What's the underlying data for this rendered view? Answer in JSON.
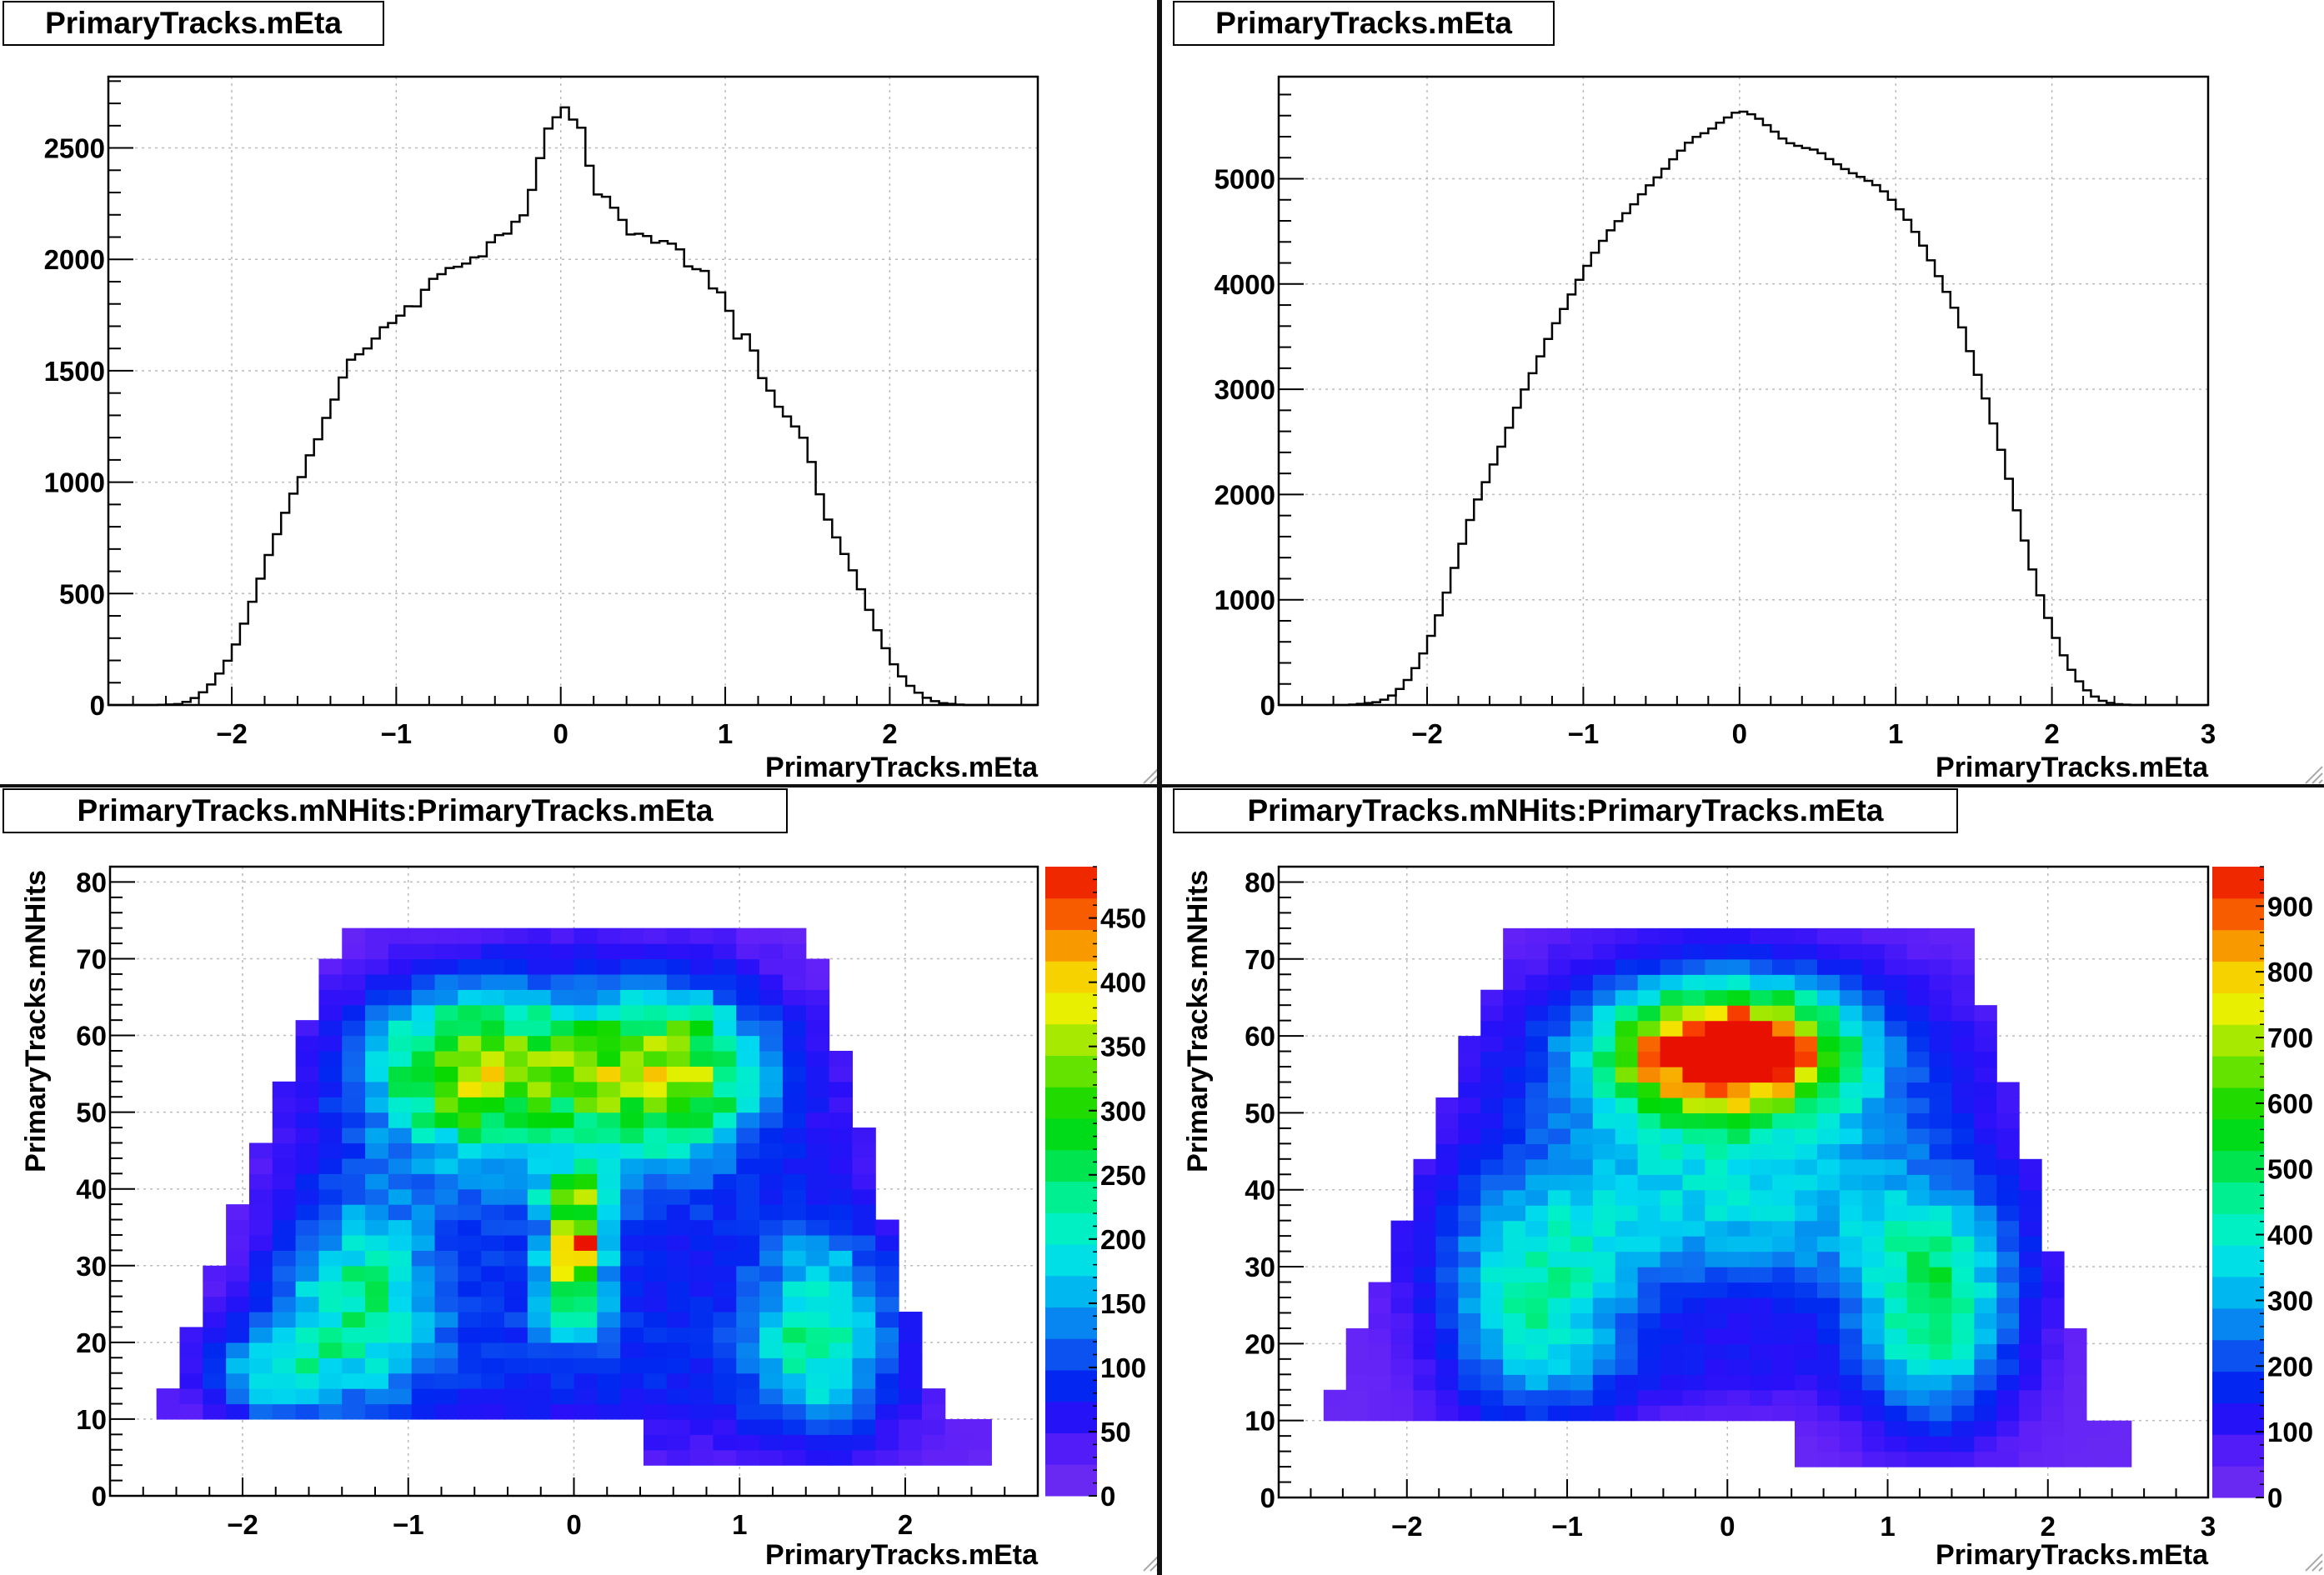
{
  "pads": [
    {
      "title": "PrimaryTracks.mEta",
      "chart_data": {
        "type": "histogram",
        "title": "PrimaryTracks.mEta",
        "xlabel": "PrimaryTracks.mEta",
        "ylabel": "",
        "xlim": [
          -2.75,
          2.9
        ],
        "ylim": [
          0,
          2820
        ],
        "xticks": [
          "−2",
          "−1",
          "0",
          "1",
          "2"
        ],
        "xtick_values": [
          -2,
          -1,
          0,
          1,
          2
        ],
        "yticks": [
          "0",
          "500",
          "1000",
          "1500",
          "2000",
          "2500"
        ],
        "ytick_values": [
          0,
          500,
          1000,
          1500,
          2000,
          2500
        ],
        "grid": true,
        "bin_width": 0.05,
        "curve_points": [
          [
            -2.45,
            0
          ],
          [
            -2.3,
            5
          ],
          [
            -2.2,
            40
          ],
          [
            -2.1,
            110
          ],
          [
            -2.0,
            230
          ],
          [
            -1.9,
            410
          ],
          [
            -1.8,
            620
          ],
          [
            -1.7,
            820
          ],
          [
            -1.6,
            980
          ],
          [
            -1.5,
            1150
          ],
          [
            -1.4,
            1330
          ],
          [
            -1.3,
            1510
          ],
          [
            -1.2,
            1600
          ],
          [
            -1.1,
            1670
          ],
          [
            -1.0,
            1740
          ],
          [
            -0.9,
            1780
          ],
          [
            -0.8,
            1880
          ],
          [
            -0.7,
            1960
          ],
          [
            -0.6,
            1990
          ],
          [
            -0.5,
            2020
          ],
          [
            -0.4,
            2080
          ],
          [
            -0.3,
            2150
          ],
          [
            -0.2,
            2250
          ],
          [
            -0.15,
            2400
          ],
          [
            -0.1,
            2560
          ],
          [
            -0.05,
            2630
          ],
          [
            0.0,
            2690
          ],
          [
            0.05,
            2660
          ],
          [
            0.1,
            2600
          ],
          [
            0.15,
            2520
          ],
          [
            0.2,
            2340
          ],
          [
            0.3,
            2240
          ],
          [
            0.4,
            2150
          ],
          [
            0.5,
            2100
          ],
          [
            0.6,
            2090
          ],
          [
            0.7,
            2050
          ],
          [
            0.8,
            1970
          ],
          [
            0.9,
            1910
          ],
          [
            1.0,
            1820
          ],
          [
            1.05,
            1680
          ],
          [
            1.1,
            1610
          ],
          [
            1.15,
            1680
          ],
          [
            1.2,
            1490
          ],
          [
            1.3,
            1380
          ],
          [
            1.4,
            1280
          ],
          [
            1.5,
            1160
          ],
          [
            1.55,
            1000
          ],
          [
            1.6,
            870
          ],
          [
            1.7,
            720
          ],
          [
            1.8,
            560
          ],
          [
            1.9,
            380
          ],
          [
            2.0,
            210
          ],
          [
            2.1,
            100
          ],
          [
            2.2,
            40
          ],
          [
            2.3,
            10
          ],
          [
            2.45,
            0
          ]
        ],
        "noisy": true
      }
    },
    {
      "title": "PrimaryTracks.mEta",
      "chart_data": {
        "type": "histogram",
        "title": "PrimaryTracks.mEta",
        "xlabel": "PrimaryTracks.mEta",
        "ylabel": "",
        "xlim": [
          -2.95,
          3.0
        ],
        "ylim": [
          0,
          5970
        ],
        "xticks": [
          "−2",
          "−1",
          "0",
          "1",
          "2",
          "3"
        ],
        "xtick_values": [
          -2,
          -1,
          0,
          1,
          2,
          3
        ],
        "yticks": [
          "0",
          "1000",
          "2000",
          "3000",
          "4000",
          "5000"
        ],
        "ytick_values": [
          0,
          1000,
          2000,
          3000,
          4000,
          5000
        ],
        "grid": true,
        "bin_width": 0.05,
        "curve_points": [
          [
            -2.5,
            0
          ],
          [
            -2.3,
            30
          ],
          [
            -2.2,
            110
          ],
          [
            -2.1,
            280
          ],
          [
            -2.0,
            560
          ],
          [
            -1.9,
            950
          ],
          [
            -1.8,
            1420
          ],
          [
            -1.7,
            1870
          ],
          [
            -1.6,
            2200
          ],
          [
            -1.5,
            2540
          ],
          [
            -1.4,
            2920
          ],
          [
            -1.3,
            3230
          ],
          [
            -1.2,
            3560
          ],
          [
            -1.1,
            3830
          ],
          [
            -1.0,
            4110
          ],
          [
            -0.9,
            4360
          ],
          [
            -0.8,
            4560
          ],
          [
            -0.7,
            4710
          ],
          [
            -0.6,
            4900
          ],
          [
            -0.5,
            5050
          ],
          [
            -0.4,
            5230
          ],
          [
            -0.3,
            5380
          ],
          [
            -0.2,
            5450
          ],
          [
            -0.1,
            5560
          ],
          [
            0.0,
            5650
          ],
          [
            0.1,
            5600
          ],
          [
            0.2,
            5480
          ],
          [
            0.3,
            5350
          ],
          [
            0.4,
            5300
          ],
          [
            0.5,
            5270
          ],
          [
            0.6,
            5160
          ],
          [
            0.7,
            5070
          ],
          [
            0.8,
            5000
          ],
          [
            0.9,
            4920
          ],
          [
            1.0,
            4760
          ],
          [
            1.1,
            4560
          ],
          [
            1.2,
            4300
          ],
          [
            1.3,
            4000
          ],
          [
            1.4,
            3700
          ],
          [
            1.5,
            3250
          ],
          [
            1.6,
            2800
          ],
          [
            1.7,
            2300
          ],
          [
            1.8,
            1700
          ],
          [
            1.9,
            1150
          ],
          [
            2.0,
            720
          ],
          [
            2.1,
            390
          ],
          [
            2.2,
            170
          ],
          [
            2.3,
            50
          ],
          [
            2.4,
            10
          ],
          [
            2.5,
            0
          ]
        ],
        "noisy": false
      }
    },
    {
      "title": "PrimaryTracks.mNHits:PrimaryTracks.mEta",
      "chart_data": {
        "type": "heatmap",
        "title": "PrimaryTracks.mNHits:PrimaryTracks.mEta",
        "xlabel": "PrimaryTracks.mEta",
        "ylabel": "PrimaryTracks.mNHits",
        "xlim": [
          -2.8,
          2.8
        ],
        "ylim": [
          0,
          82
        ],
        "xticks": [
          "−2",
          "−1",
          "0",
          "1",
          "2"
        ],
        "xtick_values": [
          -2,
          -1,
          0,
          1,
          2
        ],
        "yticks": [
          "0",
          "10",
          "20",
          "30",
          "40",
          "50",
          "60",
          "70",
          "80"
        ],
        "ytick_values": [
          0,
          10,
          20,
          30,
          40,
          50,
          60,
          70,
          80
        ],
        "grid": true,
        "z_min": 0,
        "z_max": 490,
        "z_ticks": [
          "0",
          "50",
          "100",
          "150",
          "200",
          "250",
          "300",
          "350",
          "400",
          "450"
        ],
        "z_tick_values": [
          0,
          50,
          100,
          150,
          200,
          250,
          300,
          350,
          400,
          450
        ],
        "bins_x": 40,
        "bins_y": 41,
        "blobs": [
          {
            "x": 0.0,
            "y": 32,
            "sx": 0.1,
            "sy": 2.5,
            "a": 420
          },
          {
            "x": 0.0,
            "y": 39,
            "sx": 0.12,
            "sy": 2.2,
            "a": 250
          },
          {
            "x": 0.0,
            "y": 26,
            "sx": 0.15,
            "sy": 4,
            "a": 170
          },
          {
            "x": -0.6,
            "y": 56,
            "sx": 0.45,
            "sy": 7,
            "a": 270
          },
          {
            "x": 0.55,
            "y": 56,
            "sx": 0.4,
            "sy": 7,
            "a": 280
          },
          {
            "x": -1.3,
            "y": 26,
            "sx": 0.35,
            "sy": 9,
            "a": 180
          },
          {
            "x": 1.5,
            "y": 22,
            "sx": 0.3,
            "sy": 9,
            "a": 190
          },
          {
            "x": -1.8,
            "y": 16,
            "sx": 0.25,
            "sy": 4,
            "a": 140
          },
          {
            "x": 0.0,
            "y": 46,
            "sx": 1.0,
            "sy": 14,
            "a": 110
          },
          {
            "x": 0.0,
            "y": 16,
            "sx": 1.5,
            "sy": 8,
            "a": 60
          }
        ],
        "base_level": 15,
        "noise": 0.35,
        "region": {
          "top": 73.5,
          "bottom": 11,
          "left_top": -1.42,
          "right_top": 1.42,
          "left_bottom": -2.5,
          "right_bottom": 2.2,
          "extra_right": [
            0.4,
            2.5
          ],
          "extra_bottom": 4
        }
      }
    },
    {
      "title": "PrimaryTracks.mNHits:PrimaryTracks.mEta",
      "chart_data": {
        "type": "heatmap",
        "title": "PrimaryTracks.mNHits:PrimaryTracks.mEta",
        "xlabel": "PrimaryTracks.mEta",
        "ylabel": "PrimaryTracks.mNHits",
        "xlim": [
          -2.8,
          3.0
        ],
        "ylim": [
          0,
          82
        ],
        "xticks": [
          "−2",
          "−1",
          "0",
          "1",
          "2",
          "3"
        ],
        "xtick_values": [
          -2,
          -1,
          0,
          1,
          2,
          3
        ],
        "yticks": [
          "0",
          "10",
          "20",
          "30",
          "40",
          "50",
          "60",
          "70",
          "80"
        ],
        "ytick_values": [
          0,
          10,
          20,
          30,
          40,
          50,
          60,
          70,
          80
        ],
        "grid": true,
        "z_min": 0,
        "z_max": 960,
        "z_ticks": [
          "0",
          "100",
          "200",
          "300",
          "400",
          "500",
          "600",
          "700",
          "800",
          "900"
        ],
        "z_tick_values": [
          0,
          100,
          200,
          300,
          400,
          500,
          600,
          700,
          800,
          900
        ],
        "bins_x": 40,
        "bins_y": 41,
        "blobs": [
          {
            "x": 0.0,
            "y": 58,
            "sx": 0.45,
            "sy": 5,
            "a": 900
          },
          {
            "x": 0.0,
            "y": 55,
            "sx": 0.9,
            "sy": 10,
            "a": 350
          },
          {
            "x": -1.2,
            "y": 24,
            "sx": 0.4,
            "sy": 10,
            "a": 350
          },
          {
            "x": 1.3,
            "y": 24,
            "sx": 0.35,
            "sy": 10,
            "a": 420
          },
          {
            "x": 0.0,
            "y": 36,
            "sx": 1.1,
            "sy": 8,
            "a": 250
          },
          {
            "x": 0.0,
            "y": 17,
            "sx": 0.7,
            "sy": 4,
            "a": 80
          }
        ],
        "base_level": 30,
        "noise": 0.25,
        "region": {
          "top": 73.5,
          "bottom": 11,
          "left_top": -1.35,
          "right_top": 1.5,
          "left_bottom": -2.5,
          "right_bottom": 2.3,
          "extra_right": [
            0.4,
            2.55
          ],
          "extra_bottom": 4
        }
      }
    }
  ]
}
